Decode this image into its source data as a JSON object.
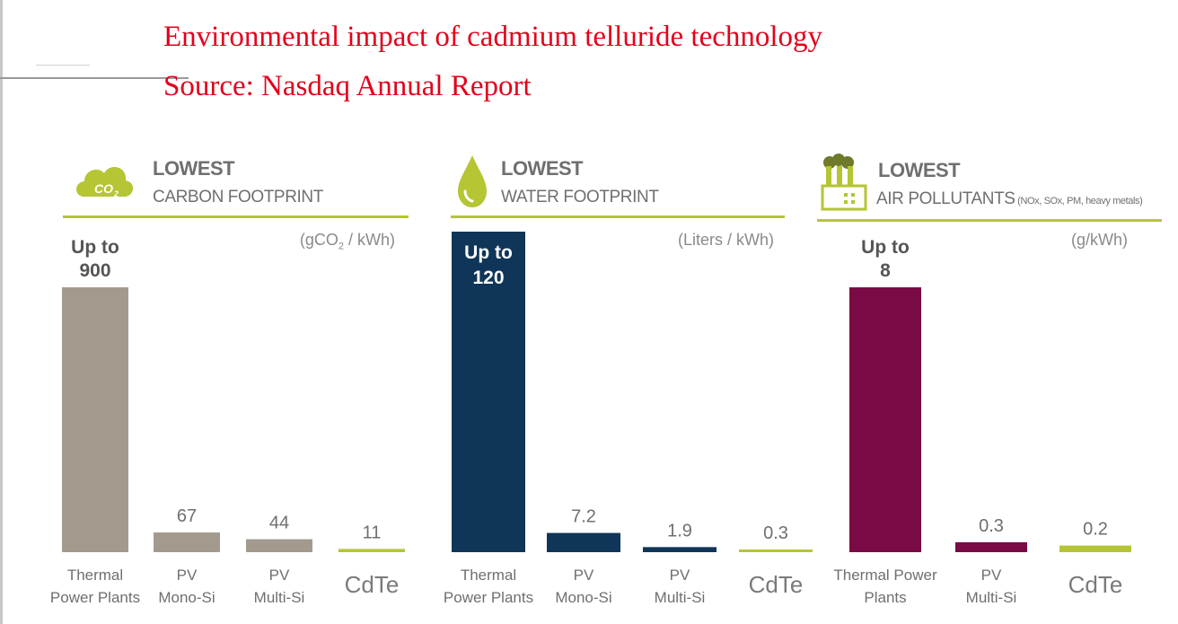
{
  "title_line1": "Environmental impact of cadmium telluride technology",
  "title_line2": "Source: Nasdaq Annual Report",
  "colors": {
    "title": "#e3001b",
    "rule": "#b5c533",
    "header": "#6f6f6f",
    "cdte": "#b5c533"
  },
  "icons": [
    "co2-cloud-icon",
    "water-drop-icon",
    "factory-icon"
  ],
  "chart_data": [
    {
      "type": "bar",
      "header_line1": "LOWEST",
      "header_line2": "CARBON FOOTPRINT",
      "unit_prefix": "(gCO",
      "unit_sub": "2",
      "unit_suffix": " / kWh)",
      "color": "#a39a8e",
      "categories": [
        [
          "Thermal",
          "Power Plants"
        ],
        [
          "PV",
          "Mono-Si"
        ],
        [
          "PV",
          "Multi-Si"
        ],
        [
          "CdTe"
        ]
      ],
      "values": [
        900,
        67,
        44,
        11
      ],
      "value_labels": [
        [
          "Up to",
          "900"
        ],
        [
          "67"
        ],
        [
          "44"
        ],
        [
          "11"
        ]
      ],
      "ylim": [
        0,
        900
      ]
    },
    {
      "type": "bar",
      "header_line1": "LOWEST",
      "header_line2": "WATER FOOTPRINT",
      "unit": "(Liters / kWh)",
      "color": "#0f3658",
      "categories": [
        [
          "Thermal",
          "Power Plants"
        ],
        [
          "PV",
          "Mono-Si"
        ],
        [
          "PV",
          "Multi-Si"
        ],
        [
          "CdTe"
        ]
      ],
      "values": [
        120,
        7.2,
        1.9,
        0.3
      ],
      "value_labels": [
        [
          "Up to",
          "120"
        ],
        [
          "7.2"
        ],
        [
          "1.9"
        ],
        [
          "0.3"
        ]
      ],
      "ylim": [
        0,
        120
      ]
    },
    {
      "type": "bar",
      "header_line1": "LOWEST",
      "header_line2": "AIR POLLUTANTS",
      "header_note": " (NOx, SOx, PM, heavy metals)",
      "unit": "(g/kWh)",
      "color": "#7a0a45",
      "categories": [
        [
          "Thermal Power",
          "Plants"
        ],
        [
          "PV",
          "Multi-Si"
        ],
        [
          "CdTe"
        ]
      ],
      "values": [
        8,
        0.3,
        0.2
      ],
      "value_labels": [
        [
          "Up to",
          "8"
        ],
        [
          "0.3"
        ],
        [
          "0.2"
        ]
      ],
      "ylim": [
        0,
        8
      ]
    }
  ]
}
